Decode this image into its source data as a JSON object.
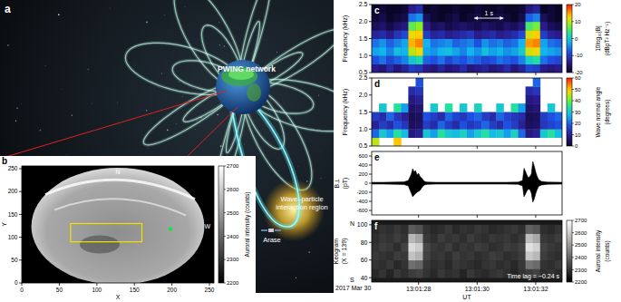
{
  "figure": {
    "panel": "a",
    "labels": [
      [
        "PWING network"
      ],
      [
        "Wave–particle",
        "interaction region"
      ],
      [
        "Arase"
      ]
    ]
  },
  "chart_data": [
    {
      "panel": "b",
      "type": "image",
      "xlabel": "X",
      "ylabel": "Y",
      "xlim": [
        0,
        256
      ],
      "ylim": [
        0,
        256
      ],
      "xticks": [
        0,
        50,
        100,
        150,
        200,
        250
      ],
      "yticks": [
        0,
        50,
        100,
        150,
        200,
        250
      ],
      "annotations": [
        "N",
        "W"
      ],
      "box": {
        "x": [
          65,
          160
        ],
        "y": [
          90,
          130
        ]
      },
      "point": {
        "x": 198,
        "y": 118
      },
      "color": "gray",
      "colorbar": {
        "label": "Auroral intensity (counts)",
        "lim": [
          2200,
          2700
        ],
        "ticks": [
          2200,
          2300,
          2400,
          2500,
          2600,
          2700
        ]
      }
    },
    {
      "panel": "c",
      "type": "heatmap",
      "ylabel": "Frequency (kHz)",
      "xlim": [
        26.4,
        32.9
      ],
      "xticks": [
        28,
        30,
        32
      ],
      "tick_labels": "y",
      "ylim": [
        0.5,
        2.5
      ],
      "yticks": [
        0.5,
        {
          "value": 1,
          "label": "1.0"
        },
        1.5,
        {
          "value": 2,
          "label": "2.0"
        },
        2.5
      ],
      "x_bins": [
        26.4,
        26.65,
        26.9,
        27.15,
        27.4,
        27.65,
        27.9,
        28.15,
        28.4,
        28.65,
        28.9,
        29.15,
        29.4,
        29.65,
        29.9,
        30.15,
        30.4,
        30.65,
        30.9,
        31.15,
        31.4,
        31.65,
        31.9,
        32.15,
        32.4,
        32.65,
        32.9
      ],
      "y_bins": [
        0.5,
        0.75,
        1,
        1.25,
        1.5,
        1.75,
        2,
        2.25,
        2.5
      ],
      "cells": [
        [
          -14,
          -15,
          -12,
          -15,
          -13,
          -10,
          -11,
          -14,
          -15,
          -13,
          -15,
          -14,
          -12,
          -15,
          -14,
          -13,
          -15,
          -14,
          -12,
          -15,
          -13,
          -9,
          -10,
          -14,
          -15,
          -14
        ],
        [
          -8,
          -6,
          -9,
          -7,
          -5,
          0,
          2,
          -7,
          -8,
          -6,
          -9,
          -7,
          -8,
          -6,
          -7,
          -9,
          -8,
          -6,
          -7,
          -8,
          -5,
          1,
          3,
          -6,
          -8,
          -9
        ],
        [
          -3,
          -2,
          -5,
          -1,
          -2,
          10,
          12,
          -3,
          -4,
          -2,
          -1,
          -3,
          -5,
          -2,
          -4,
          -1,
          -3,
          -2,
          -4,
          -3,
          0,
          11,
          12,
          -2,
          -3,
          -4
        ],
        [
          -6,
          -4,
          -7,
          -5,
          -3,
          14,
          16,
          -2,
          -6,
          -5,
          -4,
          -7,
          -6,
          -5,
          -8,
          -4,
          -6,
          -5,
          -7,
          -6,
          -2,
          15,
          16,
          -3,
          -6,
          -7
        ],
        [
          -13,
          -12,
          -14,
          -11,
          -9,
          12,
          13,
          -10,
          -13,
          -12,
          -14,
          -13,
          -12,
          -11,
          -14,
          -13,
          -12,
          -14,
          -13,
          -12,
          -9,
          11,
          13,
          -10,
          -13,
          -14
        ],
        [
          -17,
          -16,
          -18,
          -16,
          -15,
          6,
          8,
          -14,
          -17,
          -16,
          -18,
          -17,
          -16,
          -17,
          -18,
          -16,
          -17,
          -18,
          -16,
          -17,
          -15,
          5,
          7,
          -14,
          -17,
          -18
        ],
        [
          -19,
          -18,
          -20,
          -19,
          -18,
          -6,
          -4,
          -17,
          -19,
          -20,
          -19,
          -18,
          -20,
          -19,
          -18,
          -20,
          -19,
          -18,
          -19,
          -20,
          -18,
          -7,
          -5,
          -17,
          -19,
          -20
        ],
        [
          -20,
          -19,
          -20,
          -20,
          -19,
          -14,
          -12,
          -20,
          -19,
          -20,
          -20,
          -19,
          -20,
          -20,
          -19,
          -20,
          -20,
          -19,
          -20,
          -20,
          -19,
          -15,
          -13,
          -20,
          -19,
          -20
        ]
      ],
      "color": "jet",
      "colorbar": {
        "label": [
          "10log₁₀|B|",
          "(dBpT² Hz⁻¹)"
        ],
        "lim": [
          -20,
          20
        ],
        "ticks": [
          -20,
          -10,
          0,
          10,
          20
        ]
      },
      "annotations": [
        {
          "text": "1 s",
          "x": [
            29.9,
            30.9
          ]
        }
      ]
    },
    {
      "panel": "d",
      "type": "heatmap",
      "ylabel": "Frequency (kHz)",
      "xlim": [
        26.4,
        32.9
      ],
      "xticks": [
        28,
        30,
        32
      ],
      "tick_labels": "y",
      "ylim": [
        0.5,
        2.5
      ],
      "yticks": [
        0.5,
        {
          "value": 1,
          "label": "1.0"
        },
        1.5,
        {
          "value": 2,
          "label": "2.0"
        },
        2.5
      ],
      "x_bins": [
        26.4,
        26.65,
        26.9,
        27.15,
        27.4,
        27.65,
        27.9,
        28.15,
        28.4,
        28.65,
        28.9,
        29.15,
        29.4,
        29.65,
        29.9,
        30.15,
        30.4,
        30.65,
        30.9,
        31.15,
        31.4,
        31.65,
        31.9,
        32.15,
        32.4,
        32.65,
        32.9
      ],
      "y_bins": [
        0.5,
        0.75,
        1,
        1.25,
        1.5,
        1.75,
        2,
        2.25,
        2.5
      ],
      "cells": [
        [
          45,
          null,
          null,
          50,
          null,
          null,
          null,
          null,
          null,
          null,
          null,
          null,
          null,
          null,
          null,
          null,
          null,
          null,
          null,
          null,
          null,
          null,
          null,
          null,
          null,
          null
        ],
        [
          20,
          30,
          25,
          35,
          28,
          8,
          10,
          30,
          25,
          35,
          30,
          28,
          32,
          25,
          30,
          35,
          28,
          30,
          25,
          32,
          20,
          8,
          10,
          30,
          35,
          28
        ],
        [
          10,
          15,
          12,
          18,
          14,
          5,
          6,
          15,
          12,
          20,
          15,
          12,
          18,
          14,
          16,
          20,
          15,
          12,
          18,
          15,
          10,
          5,
          6,
          14,
          16,
          18
        ],
        [
          15,
          12,
          20,
          14,
          10,
          4,
          5,
          18,
          15,
          12,
          20,
          16,
          14,
          18,
          20,
          15,
          12,
          20,
          16,
          14,
          12,
          4,
          5,
          15,
          18,
          20
        ],
        [
          null,
          30,
          null,
          35,
          25,
          6,
          7,
          null,
          30,
          null,
          35,
          null,
          30,
          null,
          32,
          null,
          null,
          30,
          null,
          35,
          25,
          6,
          7,
          null,
          30,
          null
        ],
        [
          null,
          null,
          null,
          null,
          null,
          8,
          10,
          null,
          null,
          null,
          null,
          null,
          null,
          null,
          null,
          null,
          null,
          null,
          null,
          null,
          null,
          8,
          9,
          null,
          null,
          null
        ],
        [
          null,
          null,
          null,
          null,
          null,
          12,
          14,
          null,
          null,
          null,
          null,
          null,
          null,
          null,
          null,
          null,
          null,
          null,
          null,
          null,
          null,
          12,
          14,
          null,
          null,
          null
        ],
        [
          null,
          null,
          null,
          null,
          null,
          null,
          18,
          null,
          null,
          null,
          null,
          null,
          null,
          null,
          null,
          null,
          null,
          null,
          null,
          null,
          null,
          null,
          20,
          null,
          null,
          null
        ]
      ],
      "color": "jet",
      "colorbar": {
        "label": [
          "Wave normal angle",
          "(degrees)"
        ],
        "lim": [
          0,
          60
        ],
        "ticks": [
          0,
          10,
          20,
          30,
          40,
          50,
          60
        ]
      }
    },
    {
      "panel": "e",
      "type": "area",
      "ylabel": [
        "B⊥",
        "(pT)"
      ],
      "xlim": [
        26.4,
        32.9
      ],
      "xticks": [
        28,
        30,
        32
      ],
      "tick_labels": "y",
      "ylim": [
        -700,
        700
      ],
      "yticks": [
        -600,
        -400,
        -200,
        0,
        200,
        400,
        600
      ],
      "x": [
        26.4,
        26.8,
        27.2,
        27.5,
        27.65,
        27.75,
        27.8,
        27.85,
        27.9,
        27.95,
        28.0,
        28.05,
        28.1,
        28.15,
        28.2,
        28.3,
        28.6,
        29.0,
        29.5,
        30.0,
        30.5,
        31.0,
        31.4,
        31.55,
        31.6,
        31.65,
        31.7,
        31.75,
        31.8,
        31.85,
        31.9,
        31.95,
        32.0,
        32.05,
        32.1,
        32.2,
        32.4,
        32.9
      ],
      "series": [
        {
          "color": "#000000",
          "values": [
            20,
            20,
            25,
            30,
            60,
            200,
            320,
            250,
            280,
            180,
            220,
            150,
            120,
            80,
            40,
            25,
            20,
            20,
            20,
            20,
            20,
            20,
            25,
            60,
            330,
            260,
            180,
            120,
            150,
            200,
            480,
            380,
            250,
            150,
            80,
            40,
            25,
            20
          ]
        },
        {
          "color": "#000000",
          "values": [
            -20,
            -20,
            -25,
            -30,
            -60,
            -220,
            -300,
            -260,
            -230,
            -200,
            -180,
            -160,
            -110,
            -70,
            -40,
            -25,
            -20,
            -20,
            -20,
            -20,
            -20,
            -20,
            -25,
            -60,
            -300,
            -240,
            -170,
            -130,
            -140,
            -220,
            -420,
            -350,
            -230,
            -140,
            -70,
            -40,
            -25,
            -20
          ]
        }
      ]
    },
    {
      "panel": "f",
      "type": "heatmap",
      "ylabel": [
        "Keogram",
        "(X = 139)"
      ],
      "xlabel": "UT",
      "xlim": [
        26.4,
        32.9
      ],
      "xticks": [
        {
          "value": 28,
          "label": "13:01:28"
        },
        {
          "value": 30,
          "label": "13:01:30"
        },
        {
          "value": 32,
          "label": "13:01:32"
        }
      ],
      "ylim": [
        35,
        105
      ],
      "yticks": [
        40,
        60,
        80,
        100
      ],
      "x_bins": [
        26.4,
        26.65,
        26.9,
        27.15,
        27.4,
        27.65,
        27.9,
        28.15,
        28.4,
        28.65,
        28.9,
        29.15,
        29.4,
        29.65,
        29.9,
        30.15,
        30.4,
        30.65,
        30.9,
        31.15,
        31.4,
        31.65,
        31.9,
        32.15,
        32.4,
        32.65,
        32.9
      ],
      "y_bins": [
        40,
        50,
        60,
        70,
        80,
        90,
        100
      ],
      "cells": [
        [
          2280,
          2300,
          2270,
          2310,
          2290,
          2320,
          2330,
          2300,
          2280,
          2310,
          2290,
          2300,
          2270,
          2310,
          2290,
          2280,
          2300,
          2310,
          2290,
          2270,
          2300,
          2320,
          2330,
          2290,
          2300,
          2280
        ],
        [
          2300,
          2290,
          2310,
          2280,
          2300,
          2420,
          2400,
          2310,
          2290,
          2300,
          2280,
          2310,
          2300,
          2290,
          2280,
          2300,
          2310,
          2290,
          2300,
          2280,
          2310,
          2430,
          2410,
          2300,
          2290,
          2310
        ],
        [
          2310,
          2300,
          2290,
          2320,
          2310,
          2580,
          2550,
          2330,
          2300,
          2310,
          2290,
          2320,
          2300,
          2310,
          2290,
          2300,
          2320,
          2310,
          2290,
          2300,
          2320,
          2590,
          2560,
          2320,
          2300,
          2290
        ],
        [
          2300,
          2320,
          2310,
          2290,
          2330,
          2630,
          2600,
          2340,
          2310,
          2300,
          2320,
          2290,
          2310,
          2300,
          2320,
          2310,
          2290,
          2300,
          2320,
          2310,
          2330,
          2640,
          2610,
          2330,
          2310,
          2300
        ],
        [
          2290,
          2310,
          2300,
          2320,
          2300,
          2560,
          2520,
          2310,
          2290,
          2320,
          2300,
          2310,
          2290,
          2320,
          2300,
          2290,
          2310,
          2300,
          2310,
          2290,
          2310,
          2570,
          2530,
          2310,
          2300,
          2320
        ],
        [
          2280,
          2300,
          2290,
          2310,
          2290,
          2380,
          2360,
          2300,
          2280,
          2290,
          2310,
          2280,
          2300,
          2290,
          2310,
          2300,
          2280,
          2290,
          2300,
          2310,
          2290,
          2390,
          2370,
          2290,
          2280,
          2300
        ]
      ],
      "color": "gray",
      "colorbar": {
        "label": [
          "Auroral intensity",
          "(counts)"
        ],
        "lim": [
          2200,
          2700
        ],
        "ticks": [
          2200,
          2300,
          2400,
          2500,
          2600,
          2700
        ]
      },
      "annotations": [
        "N",
        "S",
        "Time lag = −0.24 s",
        "2017 Mar 30"
      ]
    }
  ]
}
